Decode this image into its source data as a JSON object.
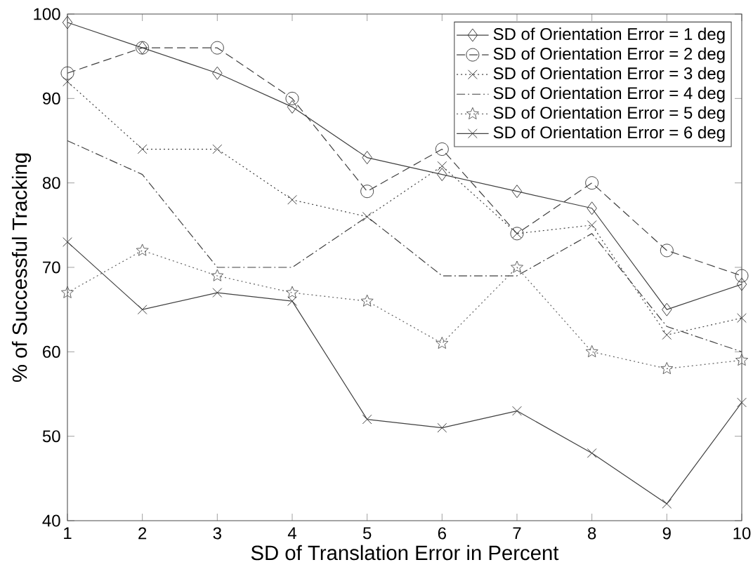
{
  "chart_data": {
    "type": "line",
    "xlabel": "SD of Translation Error in Percent",
    "ylabel": "% of Successful Tracking",
    "x": [
      1,
      2,
      3,
      4,
      5,
      6,
      7,
      8,
      9,
      10
    ],
    "series": [
      {
        "name": "SD of Orientation Error = 1 deg",
        "color": "#404040",
        "marker": "diamond",
        "line_style": "solid",
        "values": [
          99,
          96,
          93,
          89,
          83,
          81,
          79,
          77,
          65,
          68
        ]
      },
      {
        "name": "SD of Orientation Error = 2 deg",
        "color": "#404040",
        "marker": "circle",
        "line_style": "dashed",
        "values": [
          93,
          96,
          96,
          90,
          79,
          84,
          74,
          80,
          72,
          69
        ]
      },
      {
        "name": "SD of Orientation Error = 3 deg",
        "color": "#404040",
        "marker": "cross",
        "line_style": "dotted",
        "values": [
          92,
          84,
          84,
          78,
          76,
          82,
          74,
          75,
          62,
          64
        ]
      },
      {
        "name": "SD of Orientation Error = 4 deg",
        "color": "#404040",
        "marker": "none",
        "line_style": "dashdot",
        "values": [
          85,
          81,
          70,
          70,
          76,
          69,
          69,
          74,
          63,
          60
        ]
      },
      {
        "name": "SD of Orientation Error = 5 deg",
        "color": "#606060",
        "marker": "star",
        "line_style": "dotted",
        "values": [
          67,
          72,
          69,
          67,
          66,
          61,
          70,
          60,
          58,
          59
        ]
      },
      {
        "name": "SD of Orientation Error = 6 deg",
        "color": "#404040",
        "marker": "cross",
        "line_style": "solid",
        "values": [
          73,
          65,
          67,
          66,
          52,
          51,
          53,
          48,
          42,
          54
        ]
      }
    ],
    "xlim": [
      1,
      10
    ],
    "xticks": [
      1,
      2,
      3,
      4,
      5,
      6,
      7,
      8,
      9,
      10
    ],
    "ylim": [
      40,
      100
    ],
    "yticks": [
      40,
      50,
      60,
      70,
      80,
      90,
      100
    ],
    "legend": "top right",
    "grid": false
  }
}
